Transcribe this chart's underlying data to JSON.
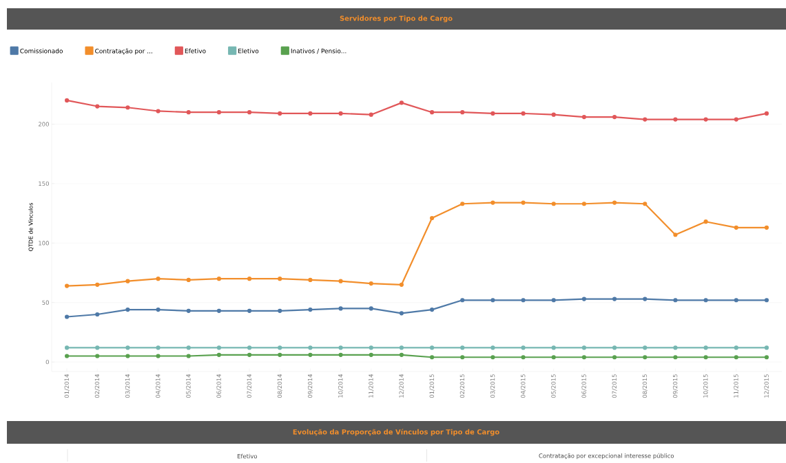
{
  "chart_data": {
    "type": "line",
    "title": "Servidores por Tipo de Cargo",
    "ylabel": "QTDE de Vínculos",
    "categories": [
      "01/2014",
      "02/2014",
      "03/2014",
      "04/2014",
      "05/2014",
      "06/2014",
      "07/2014",
      "08/2014",
      "09/2014",
      "10/2014",
      "11/2014",
      "12/2014",
      "01/2015",
      "02/2015",
      "03/2015",
      "04/2015",
      "05/2015",
      "06/2015",
      "07/2015",
      "08/2015",
      "09/2015",
      "10/2015",
      "11/2015",
      "12/2015"
    ],
    "series": [
      {
        "name": "Comissionado",
        "color": "#4e79a7",
        "values": [
          38,
          40,
          44,
          44,
          43,
          43,
          43,
          43,
          44,
          45,
          45,
          41,
          44,
          52,
          52,
          52,
          52,
          53,
          53,
          53,
          52,
          52,
          52,
          52
        ]
      },
      {
        "name": "Contratação por ...",
        "color": "#f28e2b",
        "values": [
          64,
          65,
          68,
          70,
          69,
          70,
          70,
          70,
          69,
          68,
          66,
          65,
          121,
          133,
          134,
          134,
          133,
          133,
          134,
          133,
          107,
          118,
          113,
          113
        ]
      },
      {
        "name": "Efetivo",
        "color": "#e15759",
        "values": [
          220,
          215,
          214,
          211,
          210,
          210,
          210,
          209,
          209,
          209,
          208,
          218,
          210,
          210,
          209,
          209,
          208,
          206,
          206,
          204,
          204,
          204,
          204,
          209
        ]
      },
      {
        "name": "Eletivo",
        "color": "#76b7b2",
        "values": [
          12,
          12,
          12,
          12,
          12,
          12,
          12,
          12,
          12,
          12,
          12,
          12,
          12,
          12,
          12,
          12,
          12,
          12,
          12,
          12,
          12,
          12,
          12,
          12
        ]
      },
      {
        "name": "Inativos / Pensio...",
        "color": "#59a14f",
        "values": [
          5,
          5,
          5,
          5,
          5,
          6,
          6,
          6,
          6,
          6,
          6,
          6,
          4,
          4,
          4,
          4,
          4,
          4,
          4,
          4,
          4,
          4,
          4,
          4
        ]
      }
    ],
    "ylim": [
      -8,
      235
    ],
    "yticks": [
      0,
      50,
      100,
      150,
      200
    ],
    "grid": "y",
    "legend": "top left",
    "marker": "circle",
    "line_style": "solid",
    "annotations": [
      "Evolução da Proporção de Vínculos por Tipo de Cargo",
      "Efetivo",
      "Contratação por excepcional interesse público"
    ]
  }
}
